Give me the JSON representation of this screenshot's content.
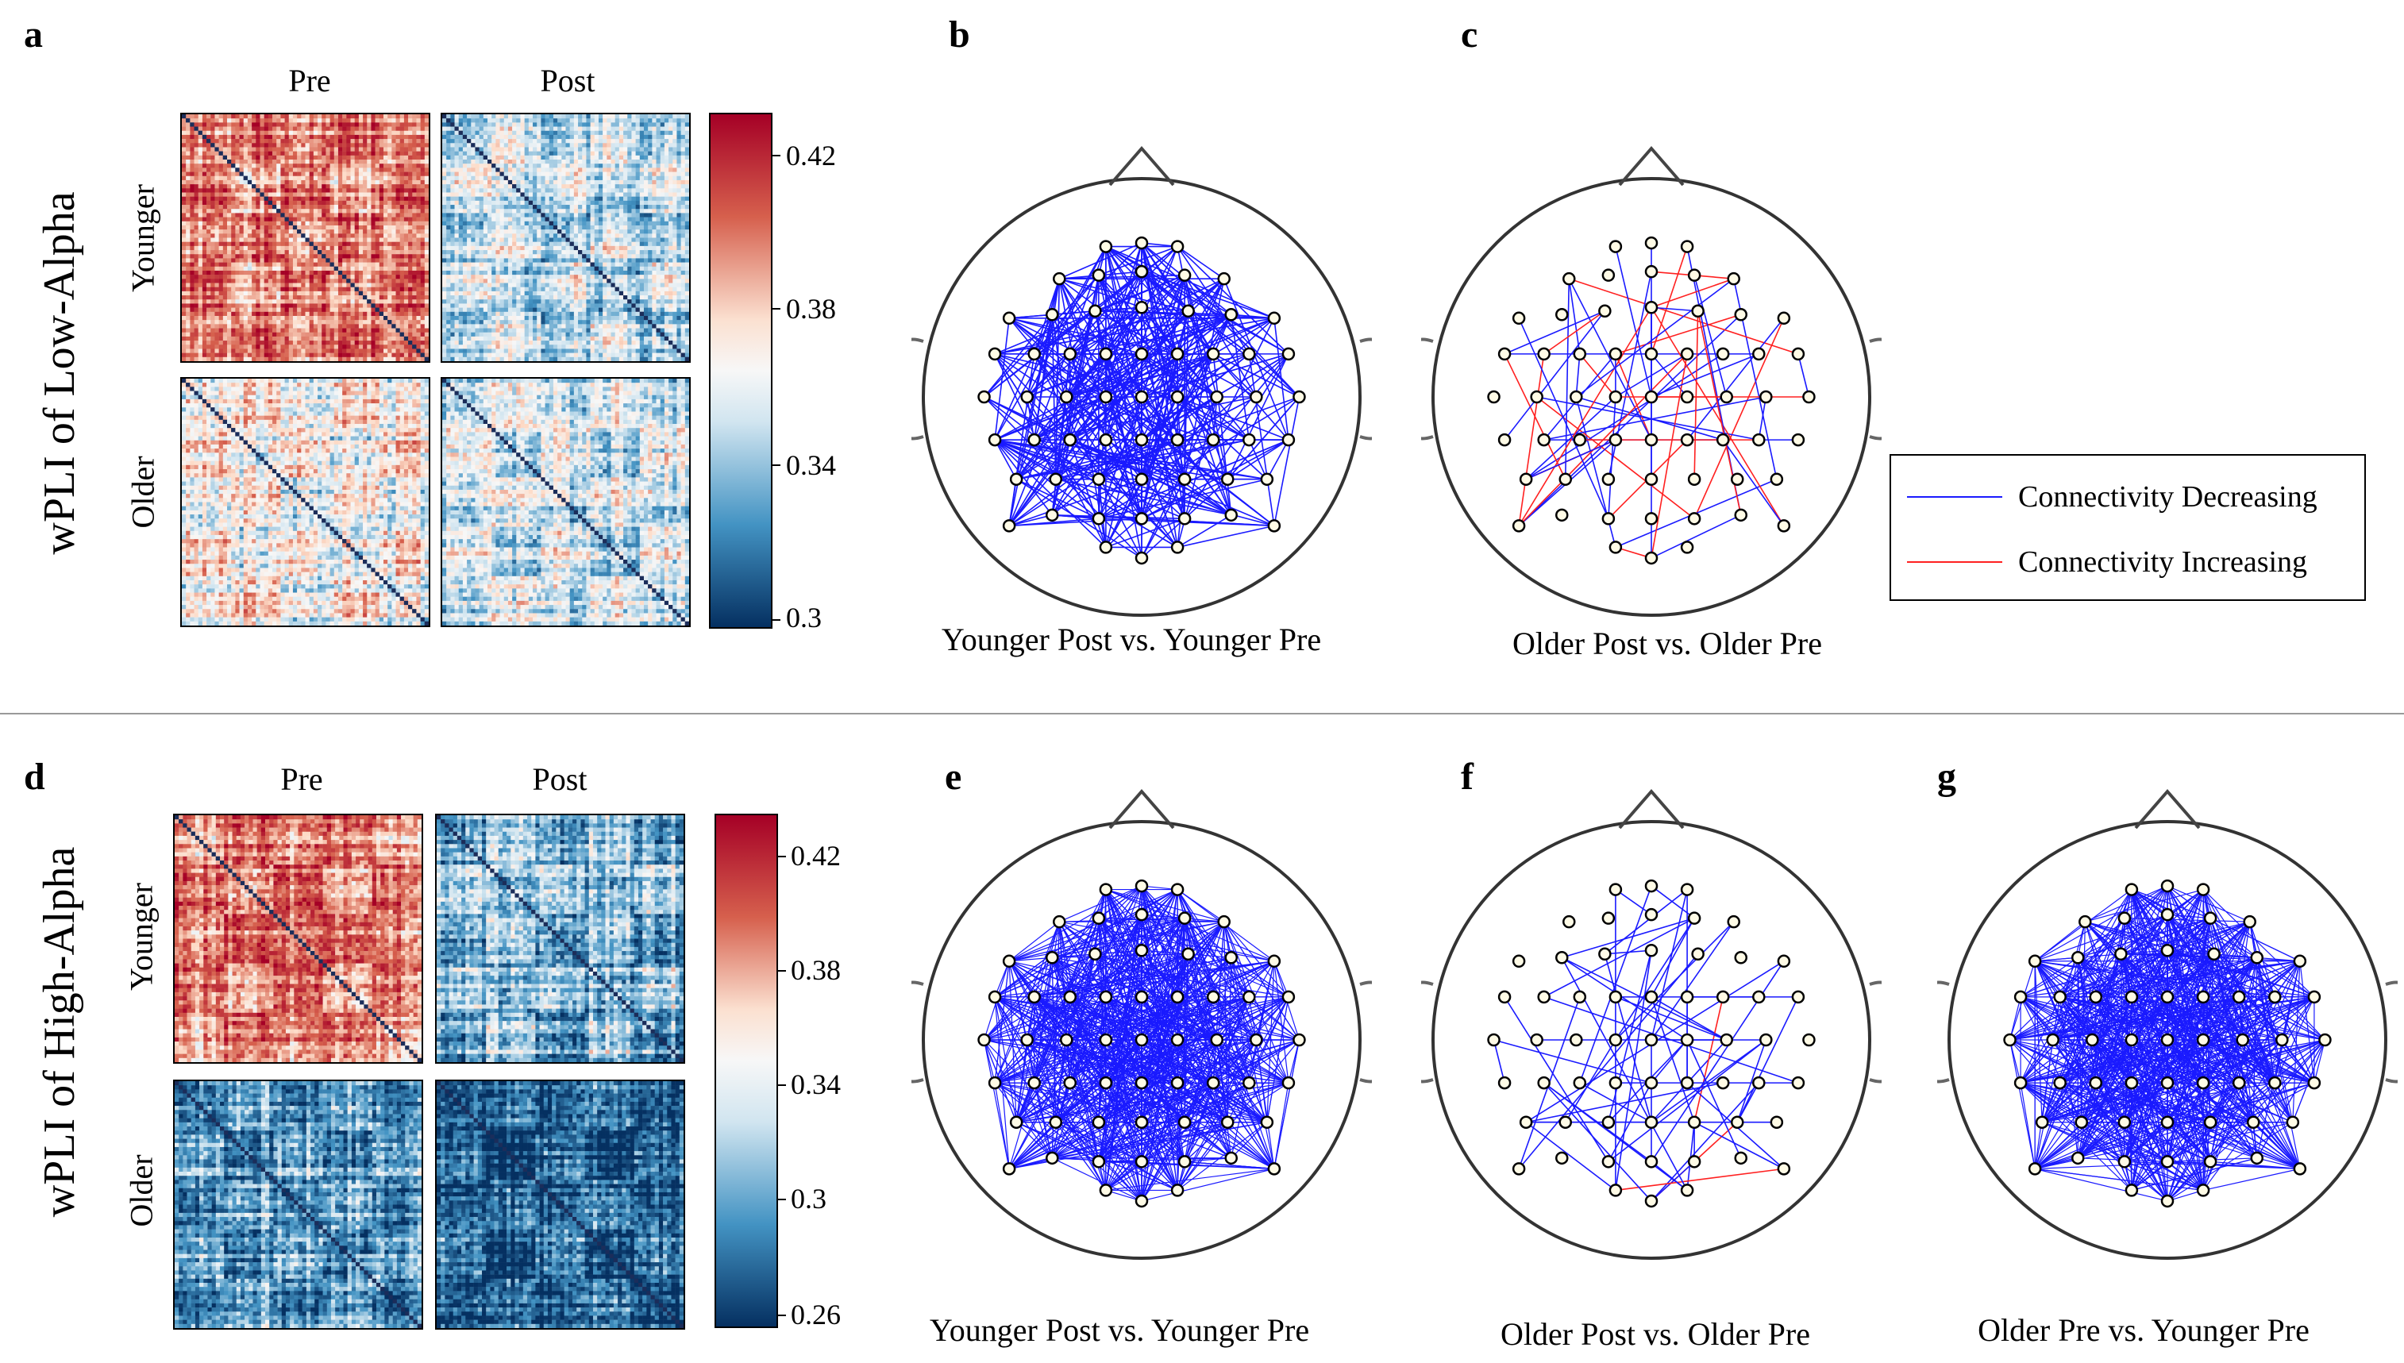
{
  "panels": {
    "a": "a",
    "b": "b",
    "c": "c",
    "d": "d",
    "e": "e",
    "f": "f",
    "g": "g"
  },
  "rows": [
    {
      "title": "wPLI of Low-Alpha",
      "col_labels": [
        "Pre",
        "Post"
      ],
      "group_labels": [
        "Younger",
        "Older"
      ],
      "colorbar_ticks": [
        "0.42",
        "0.38",
        "0.34",
        "0.3"
      ]
    },
    {
      "title": "wPLI of High-Alpha",
      "col_labels": [
        "Pre",
        "Post"
      ],
      "group_labels": [
        "Younger",
        "Older"
      ],
      "colorbar_ticks": [
        "0.42",
        "0.38",
        "0.34",
        "0.3",
        "0.26"
      ]
    }
  ],
  "captions": {
    "b": "Younger Post vs. Younger Pre",
    "c": "Older Post vs. Older Pre",
    "e": "Younger Post vs. Younger Pre",
    "f": "Older Post vs. Older Pre",
    "g": "Older Pre vs. Younger Pre"
  },
  "legend": {
    "decreasing": "Connectivity Decreasing",
    "increasing": "Connectivity Increasing",
    "decreasing_color": "#1a1aff",
    "increasing_color": "#ff2020"
  },
  "matrix_levels": {
    "low_alpha": {
      "younger_pre": 0.39,
      "younger_post": 0.345,
      "older_pre": 0.36,
      "older_post": 0.35
    },
    "high_alpha": {
      "younger_pre": 0.39,
      "younger_post": 0.33,
      "older_pre": 0.32,
      "older_post": 0.3
    }
  },
  "connectivity_density": {
    "b": "dense",
    "c": "sparse",
    "e": "very-dense",
    "f": "sparse",
    "g": "very-dense"
  }
}
